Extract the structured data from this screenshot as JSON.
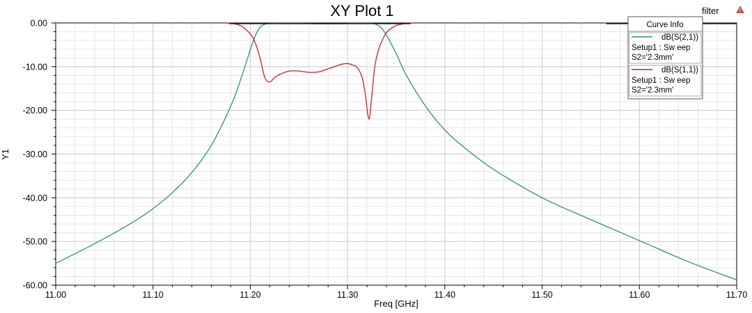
{
  "project_name": "filter",
  "warning_color": "#c0504d",
  "chart_data": {
    "type": "line",
    "title": "XY Plot 1",
    "xlabel": "Freq [GHz]",
    "ylabel": "Y1",
    "xlim": [
      11.0,
      11.7
    ],
    "ylim": [
      -60,
      0
    ],
    "xticks": [
      11.0,
      11.1,
      11.2,
      11.3,
      11.4,
      11.5,
      11.6,
      11.7
    ],
    "xtick_labels": [
      "11.00",
      "11.10",
      "11.20",
      "11.30",
      "11.40",
      "11.50",
      "11.60",
      "11.70"
    ],
    "yticks": [
      0,
      -10,
      -20,
      -30,
      -40,
      -50,
      -60
    ],
    "ytick_labels": [
      "0.00",
      "-10.00",
      "-20.00",
      "-30.00",
      "-40.00",
      "-50.00",
      "-60.00"
    ],
    "grid": true,
    "legend": {
      "title": "Curve Info",
      "placement": "top-right",
      "entries": [
        {
          "name": "dB(S(2,1))",
          "line2": "Setup1 : Sw eep",
          "line3": "S2='2.3mm'"
        },
        {
          "name": "dB(S(1,1))",
          "line2": "Setup1 : Sw eep",
          "line3": "S2='2.3mm'"
        }
      ]
    },
    "series": [
      {
        "name": "dB(S(2,1))",
        "color": "#2e8b8b",
        "x": [
          11.0,
          11.04,
          11.08,
          11.1,
          11.12,
          11.14,
          11.16,
          11.18,
          11.19,
          11.2,
          11.205,
          11.21,
          11.215,
          11.22,
          11.23,
          11.25,
          11.27,
          11.29,
          11.31,
          11.325,
          11.33,
          11.335,
          11.34,
          11.35,
          11.36,
          11.38,
          11.4,
          11.42,
          11.45,
          11.5,
          11.55,
          11.6,
          11.65,
          11.7
        ],
        "y": [
          -55.0,
          -50.5,
          -45.5,
          -42.5,
          -38.8,
          -34.2,
          -28.0,
          -19.0,
          -13.0,
          -6.2,
          -3.0,
          -1.0,
          -0.3,
          -0.1,
          -0.1,
          -0.1,
          -0.2,
          -0.2,
          -0.1,
          -0.1,
          -0.4,
          -1.2,
          -2.8,
          -7.0,
          -11.8,
          -19.0,
          -24.5,
          -28.5,
          -33.5,
          -40.0,
          -45.0,
          -49.8,
          -54.6,
          -58.8
        ]
      },
      {
        "name": "dB(S(1,1))",
        "color": "#cc2020",
        "x": [
          11.178,
          11.19,
          11.2,
          11.205,
          11.21,
          11.215,
          11.22,
          11.225,
          11.23,
          11.24,
          11.25,
          11.26,
          11.27,
          11.28,
          11.29,
          11.295,
          11.3,
          11.305,
          11.31,
          11.315,
          11.318,
          11.322,
          11.325,
          11.328,
          11.332,
          11.336,
          11.34,
          11.345,
          11.35,
          11.355,
          11.365
        ],
        "y": [
          0,
          -0.6,
          -2.5,
          -4.5,
          -8.0,
          -12.5,
          -13.5,
          -12.5,
          -11.8,
          -11.0,
          -11.0,
          -11.3,
          -11.2,
          -10.5,
          -9.7,
          -9.4,
          -9.3,
          -9.6,
          -10.2,
          -12.5,
          -16.0,
          -22.0,
          -16.5,
          -10.0,
          -6.0,
          -3.8,
          -2.2,
          -1.2,
          -0.6,
          -0.3,
          0
        ]
      }
    ]
  }
}
